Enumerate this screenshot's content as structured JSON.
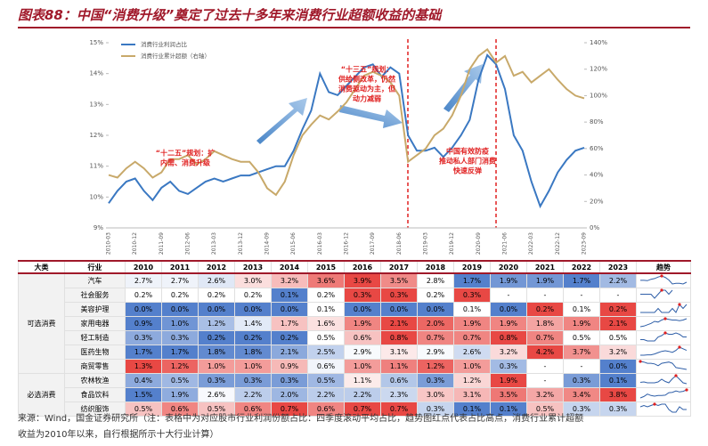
{
  "chart_data": {
    "type": "line",
    "title": "图表88：中国“消费升级”奠定了过去十多年来消费行业超额收益的基础",
    "categories": [
      "2010-03",
      null,
      null,
      "2010-12",
      null,
      null,
      "2011-09",
      null,
      null,
      "2012-06",
      null,
      null,
      "2013-03",
      null,
      null,
      "2013-12",
      null,
      null,
      "2014-09",
      null,
      null,
      "2015-06",
      null,
      null,
      "2016-03",
      null,
      null,
      "2016-12",
      null,
      null,
      "2017-09",
      null,
      null,
      "2018-06",
      null,
      null,
      "2019-03",
      null,
      null,
      "2019-12",
      null,
      null,
      "2020-09",
      null,
      null,
      "2021-06",
      null,
      null,
      "2022-03",
      null,
      null,
      "2022-12",
      null,
      null,
      "2023-09"
    ],
    "series": [
      {
        "name": "消费行业利润占比",
        "color": "#3a78c2",
        "axis": "y",
        "values": [
          9.8,
          10.2,
          10.5,
          10.6,
          10.2,
          9.9,
          10.3,
          10.5,
          10.2,
          10.1,
          10.3,
          10.5,
          10.6,
          10.5,
          10.6,
          10.7,
          10.7,
          10.8,
          10.9,
          11.0,
          11.0,
          11.5,
          12.2,
          12.8,
          14.0,
          13.4,
          13.3,
          13.6,
          13.9,
          14.2,
          14.3,
          13.9,
          14.2,
          14.0,
          12.0,
          11.5,
          11.5,
          11.6,
          11.3,
          11.6,
          12.0,
          12.5,
          13.8,
          14.6,
          14.3,
          13.5,
          12.0,
          11.5,
          10.5,
          9.7,
          10.2,
          10.8,
          11.2,
          11.5,
          11.6
        ]
      },
      {
        "name": "消费行业累计超额（右轴）",
        "color": "#c8a96a",
        "axis": "y2",
        "values": [
          40,
          38,
          45,
          50,
          45,
          38,
          42,
          52,
          52,
          55,
          48,
          52,
          58,
          55,
          52,
          50,
          50,
          42,
          30,
          25,
          35,
          55,
          70,
          78,
          85,
          82,
          88,
          95,
          105,
          115,
          118,
          115,
          110,
          100,
          50,
          55,
          60,
          70,
          75,
          85,
          100,
          120,
          130,
          135,
          125,
          130,
          115,
          118,
          110,
          115,
          120,
          112,
          105,
          100,
          98
        ]
      }
    ],
    "ylim": [
      9,
      15
    ],
    "yticks": [
      {
        "value": 9,
        "label": "9%"
      },
      {
        "value": 10,
        "label": "10%"
      },
      {
        "value": 11,
        "label": "11%"
      },
      {
        "value": 12,
        "label": "12%"
      },
      {
        "value": 13,
        "label": "13%"
      },
      {
        "value": 14,
        "label": "14%"
      },
      {
        "value": 15,
        "label": "15%"
      }
    ],
    "y2lim": [
      0,
      140
    ],
    "y2ticks": [
      {
        "value": 0,
        "label": "0%"
      },
      {
        "value": 20,
        "label": "20%"
      },
      {
        "value": 40,
        "label": "40%"
      },
      {
        "value": 60,
        "label": "60%"
      },
      {
        "value": 80,
        "label": "80%"
      },
      {
        "value": 100,
        "label": "100%"
      },
      {
        "value": 120,
        "label": "120%"
      },
      {
        "value": 140,
        "label": "140%"
      }
    ],
    "legend": "upper left",
    "annotations": [
      [
        "“十二五”规划：扩",
        "内需、消费升级"
      ],
      [
        "“十三五”规划：",
        "供给侧改革，仍然",
        "消费驱动为主，但",
        "动力减弱"
      ],
      [
        "中国有效防疫",
        "推动私人部门消费",
        "快速反弹"
      ]
    ]
  },
  "table": {
    "header": [
      "大类",
      "行业",
      "2010",
      "2011",
      "2012",
      "2013",
      "2014",
      "2015",
      "2016",
      "2017",
      "2018",
      "2019",
      "2020",
      "2021",
      "2022",
      "2023",
      "趋势"
    ],
    "groups": [
      {
        "name": "可选消费",
        "rows": [
          {
            "name": "汽车",
            "values": [
              "2.7%",
              "2.7%",
              "2.6%",
              "3.0%",
              "3.2%",
              "3.6%",
              "3.9%",
              "3.5%",
              "2.8%",
              "1.7%",
              "1.9%",
              "1.9%",
              "1.7%",
              "2.2%"
            ]
          },
          {
            "name": "社会服务",
            "values": [
              "0.2%",
              "0.2%",
              "0.2%",
              "0.2%",
              "0.1%",
              "0.2%",
              "0.3%",
              "0.3%",
              "0.2%",
              "0.3%",
              "-",
              "-",
              "-",
              "-"
            ]
          },
          {
            "name": "美容护理",
            "values": [
              "0.0%",
              "0.0%",
              "0.0%",
              "0.0%",
              "0.0%",
              "0.1%",
              "0.0%",
              "0.0%",
              "0.0%",
              "0.1%",
              "0.0%",
              "0.2%",
              "0.1%",
              "0.2%"
            ]
          },
          {
            "name": "家用电器",
            "values": [
              "0.9%",
              "1.0%",
              "1.2%",
              "1.4%",
              "1.7%",
              "1.6%",
              "1.9%",
              "2.1%",
              "2.0%",
              "1.9%",
              "1.9%",
              "1.8%",
              "1.9%",
              "2.1%"
            ]
          },
          {
            "name": "轻工制造",
            "values": [
              "0.3%",
              "0.3%",
              "0.2%",
              "0.2%",
              "0.2%",
              "0.5%",
              "0.6%",
              "0.8%",
              "0.7%",
              "0.7%",
              "0.8%",
              "0.7%",
              "0.5%",
              "0.5%"
            ]
          },
          {
            "name": "医药生物",
            "values": [
              "1.7%",
              "1.7%",
              "1.8%",
              "1.8%",
              "2.1%",
              "2.5%",
              "2.9%",
              "3.1%",
              "2.9%",
              "2.6%",
              "3.2%",
              "4.2%",
              "3.7%",
              "3.2%"
            ]
          },
          {
            "name": "商贸零售",
            "values": [
              "1.3%",
              "1.2%",
              "1.0%",
              "1.0%",
              "0.9%",
              "0.6%",
              "1.0%",
              "1.1%",
              "1.2%",
              "1.0%",
              "0.3%",
              "-",
              "-",
              "0.0%"
            ]
          }
        ]
      },
      {
        "name": "必选消费",
        "rows": [
          {
            "name": "农林牧渔",
            "values": [
              "0.4%",
              "0.5%",
              "0.3%",
              "0.3%",
              "0.3%",
              "0.5%",
              "1.1%",
              "0.6%",
              "0.3%",
              "1.2%",
              "1.9%",
              "-",
              "0.3%",
              "0.1%"
            ]
          },
          {
            "name": "食品饮料",
            "values": [
              "1.5%",
              "1.9%",
              "2.6%",
              "2.2%",
              "2.0%",
              "2.2%",
              "2.2%",
              "2.3%",
              "3.0%",
              "3.1%",
              "3.5%",
              "3.2%",
              "3.4%",
              "3.8%"
            ]
          },
          {
            "name": "纺织服饰",
            "values": [
              "0.5%",
              "0.6%",
              "0.5%",
              "0.6%",
              "0.7%",
              "0.6%",
              "0.7%",
              "0.7%",
              "0.3%",
              "0.1%",
              "0.1%",
              "0.5%",
              "0.3%",
              "0.3%"
            ]
          }
        ]
      }
    ]
  },
  "footer": {
    "lines": [
      "来源：Wind，国金证券研究所（注：表格中为对应股市行业利润份额占比：四季度滚动平均占比，趋势图红点代表占比高点，消费行业累计超额",
      "收益为2010年以来，自行根据所示十大行业计算）"
    ]
  }
}
